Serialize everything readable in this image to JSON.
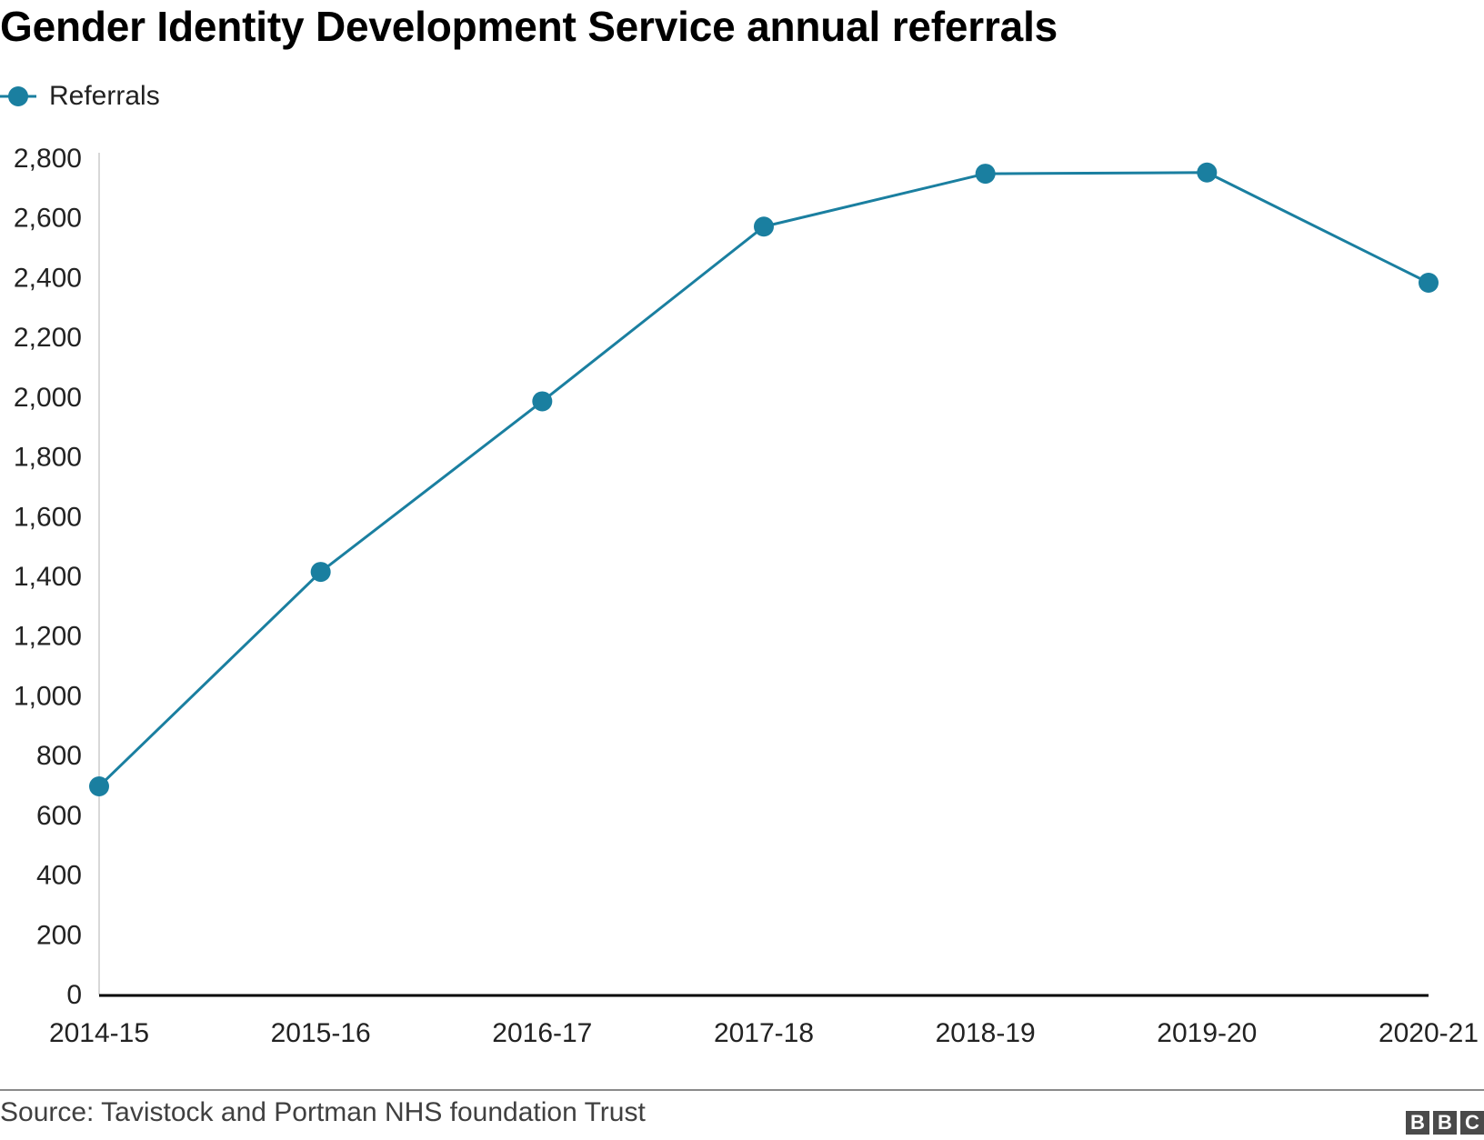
{
  "title": "Gender Identity Development Service annual referrals",
  "legend": {
    "label": "Referrals",
    "icon": "line-marker-icon"
  },
  "source": "Source: Tavistock and Portman NHS foundation Trust",
  "logo": {
    "letters": [
      "B",
      "B",
      "C"
    ]
  },
  "colors": {
    "series": "#1a7fa0",
    "axis": "#000000",
    "grid": "#cccccc",
    "text": "#222222"
  },
  "chart_data": {
    "type": "line",
    "title": "Gender Identity Development Service annual referrals",
    "xlabel": "",
    "ylabel": "",
    "categories": [
      "2014-15",
      "2015-16",
      "2016-17",
      "2017-18",
      "2018-19",
      "2019-20",
      "2020-21"
    ],
    "series": [
      {
        "name": "Referrals",
        "values": [
          697,
          1415,
          1986,
          2571,
          2748,
          2752,
          2383
        ]
      }
    ],
    "ylim": [
      0,
      2800
    ],
    "yticks": [
      0,
      200,
      400,
      600,
      800,
      1000,
      1200,
      1400,
      1600,
      1800,
      2000,
      2200,
      2400,
      2600,
      2800
    ],
    "ytick_labels": [
      "0",
      "200",
      "400",
      "600",
      "800",
      "1,000",
      "1,200",
      "1,400",
      "1,600",
      "1,800",
      "2,000",
      "2,200",
      "2,400",
      "2,600",
      "2,800"
    ],
    "grid": false,
    "legend": "top-left",
    "source": "Source: Tavistock and Portman NHS foundation Trust"
  }
}
